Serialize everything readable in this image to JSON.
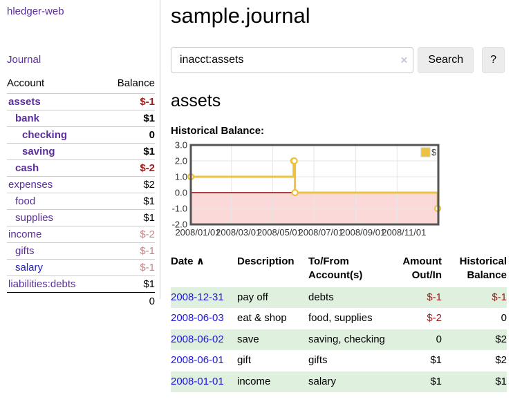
{
  "colors": {
    "link_visited_purple": "#5b2d9e",
    "link_unvisited_blue": "#2017dd",
    "negative_strong": "#a01c1c",
    "negative_faded": "#c58383",
    "row_stripe_green": "#dff0df",
    "series_gold": "#edc240",
    "chart_negative_fill": "#fbd9d9",
    "chart_zero_line": "#990000",
    "chart_border": "#545454",
    "chart_grid": "#e6e6e6",
    "chart_tick_text": "#333333"
  },
  "app": {
    "brand": "hledger-web"
  },
  "sidebar": {
    "journal_link": "Journal",
    "accounts": {
      "headers": [
        "Account",
        "Balance"
      ],
      "rows": [
        {
          "account": "assets",
          "balance": "$-1",
          "indent": 1,
          "bold": true,
          "neg": true
        },
        {
          "account": "bank",
          "balance": "$1",
          "indent": 2,
          "bold": true
        },
        {
          "account": "checking",
          "balance": "0",
          "indent": 3,
          "bold": true
        },
        {
          "account": "saving",
          "balance": "$1",
          "indent": 3,
          "bold": true
        },
        {
          "account": "cash",
          "balance": "$-2",
          "indent": 2,
          "bold": true,
          "neg": true
        },
        {
          "account": "expenses",
          "balance": "$2",
          "indent": 1
        },
        {
          "account": "food",
          "balance": "$1",
          "indent": 2
        },
        {
          "account": "supplies",
          "balance": "$1",
          "indent": 2
        },
        {
          "account": "income",
          "balance": "$-2",
          "indent": 1,
          "neg": true
        },
        {
          "account": "gifts",
          "balance": "$-1",
          "indent": 2,
          "neg": true
        },
        {
          "account": "salary",
          "balance": "$-1",
          "indent": 2,
          "neg": true,
          "unvisited": true
        },
        {
          "account": "liabilities:debts",
          "balance": "$1",
          "indent": 1
        }
      ],
      "total": "0"
    }
  },
  "header": {
    "title": "sample.journal"
  },
  "search": {
    "value": "inacct:assets",
    "clear_icon": "×",
    "button_label": "Search",
    "help_label": "?"
  },
  "account_page": {
    "heading": "assets",
    "section_label": "Historical Balance:"
  },
  "chart_data": {
    "type": "line",
    "step": true,
    "title": "Historical Balance",
    "series": [
      {
        "name": "$",
        "color": "#edc240",
        "points": [
          [
            "2008-01-01",
            1
          ],
          [
            "2008-06-01",
            2
          ],
          [
            "2008-06-02",
            2
          ],
          [
            "2008-06-03",
            0
          ],
          [
            "2008-12-31",
            -1
          ]
        ]
      }
    ],
    "x_start": "2008-01-01",
    "x_end": "2009-01-01",
    "x_ticks": [
      "2008/01/01",
      "2008/03/01",
      "2008/05/01",
      "2008/07/01",
      "2008/09/01",
      "2008/11/01"
    ],
    "y_ticks": [
      3,
      2,
      1,
      0,
      -1,
      -2
    ],
    "ylim": [
      -2,
      3
    ],
    "grid": true,
    "legend": {
      "label": "$",
      "position": "top-right"
    }
  },
  "register": {
    "headers": {
      "date": "Date",
      "sort_icon": "∧",
      "description": "Description",
      "tofrom": "To/From Account(s)",
      "amount": "Amount Out/In",
      "balance": "Historical Balance"
    },
    "rows": [
      {
        "date": "2008-12-31",
        "description": "pay off",
        "tofrom": "debts",
        "amount": "$-1",
        "balance": "$-1"
      },
      {
        "date": "2008-06-03",
        "description": "eat & shop",
        "tofrom": "food, supplies",
        "amount": "$-2",
        "balance": "0"
      },
      {
        "date": "2008-06-02",
        "description": "save",
        "tofrom": "saving, checking",
        "amount": "0",
        "balance": "$2"
      },
      {
        "date": "2008-06-01",
        "description": "gift",
        "tofrom": "gifts",
        "amount": "$1",
        "balance": "$2"
      },
      {
        "date": "2008-01-01",
        "description": "income",
        "tofrom": "salary",
        "amount": "$1",
        "balance": "$1"
      }
    ]
  }
}
